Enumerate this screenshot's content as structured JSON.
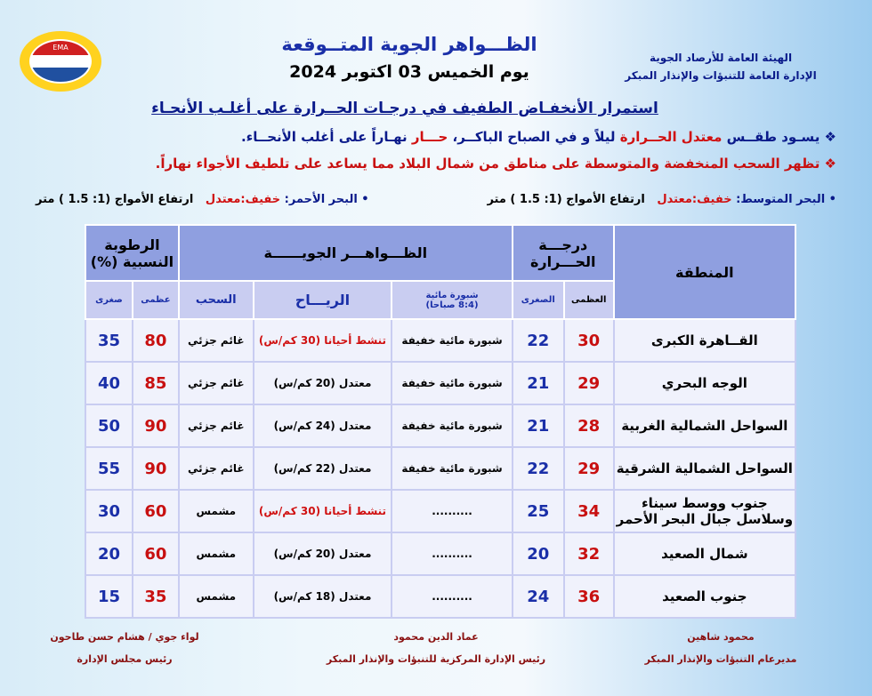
{
  "org": {
    "line1": "الهيئة العامة للأرصاد الجوية",
    "line2": "الإدارة العامة للتنبؤات والإنذار المبكر",
    "logo_text": "EMA"
  },
  "title": "الظـــواهر الجوية المتــوقعة",
  "date": "يوم الخميس 03 اكتوبر 2024",
  "headline": "استمرار الأنخفـاض الطفيف في درجـات الحــرارة على أغلـب الأنحـاء",
  "bullets": [
    {
      "p1": "❖ يسـود طقــس ",
      "p2": "معتدل الحــرارة",
      "p3": " ليلاً و في الصباح الباكــر، ",
      "p4": "حـــار",
      "p5": " نهـاراً على أغلب الأنحــاء."
    },
    {
      "p1": "❖ تظهر السحب المنخفضة والمتوسطة على مناطق من شمال البلاد مما يساعد على ",
      "p2": "تلطيف الأجواء",
      "p3": " نهاراً."
    }
  ],
  "seas": [
    {
      "label": "• البحر المتوسط: ",
      "state": "خفيف:معتدل",
      "waves": "ارتفاع الأمواج (1: 1.5 ) متر"
    },
    {
      "label": "• البحر الأحمر: ",
      "state": "خفيف:معتدل",
      "waves": "ارتفاع الأمواج (1: 1.5 ) متر"
    }
  ],
  "table": {
    "headers": {
      "region": "المنطقة",
      "temp": "درجـــة الحـــرارة",
      "phenomena": "الظـــواهـــر الجويــــــة",
      "humidity": "الرطوبة النسبية (%)",
      "max": "العظمى",
      "min": "الصغرى",
      "fog": "شبورة مائية",
      "fog_time": "(8:4 صباحا)",
      "wind": "الريـــاح",
      "clouds": "السحب",
      "hmax": "عظمى",
      "hmin": "صغرى"
    },
    "rows": [
      {
        "region": "القــاهرة الكبرى",
        "max": "30",
        "min": "22",
        "fog": "شبورة مائية خفيفة",
        "wind": "تنشط أحيانا (30 كم/س)",
        "wind_alert": true,
        "clouds": "غائم جزئي",
        "hmax": "80",
        "hmin": "35"
      },
      {
        "region": "الوجه البحري",
        "max": "29",
        "min": "21",
        "fog": "شبورة مائية خفيفة",
        "wind": "معتدل (20 كم/س)",
        "wind_alert": false,
        "clouds": "غائم جزئي",
        "hmax": "85",
        "hmin": "40"
      },
      {
        "region": "السواحل الشمالية الغربية",
        "max": "28",
        "min": "21",
        "fog": "شبورة مائية خفيفة",
        "wind": "معتدل (24 كم/س)",
        "wind_alert": false,
        "clouds": "غائم جزئي",
        "hmax": "90",
        "hmin": "50"
      },
      {
        "region": "السواحل الشمالية الشرقية",
        "max": "29",
        "min": "22",
        "fog": "شبورة مائية خفيفة",
        "wind": "معتدل (22 كم/س)",
        "wind_alert": false,
        "clouds": "غائم جزئي",
        "hmax": "90",
        "hmin": "55"
      },
      {
        "region": "جنوب ووسط سيناء وسلاسل جبال البحر الأحمر",
        "max": "34",
        "min": "25",
        "fog": "..........",
        "wind": "تنشط أحيانا (30 كم/س)",
        "wind_alert": true,
        "clouds": "مشمس",
        "hmax": "60",
        "hmin": "30"
      },
      {
        "region": "شمال الصعيد",
        "max": "32",
        "min": "20",
        "fog": "..........",
        "wind": "معتدل (20 كم/س)",
        "wind_alert": false,
        "clouds": "مشمس",
        "hmax": "60",
        "hmin": "20"
      },
      {
        "region": "جنوب الصعيد",
        "max": "36",
        "min": "24",
        "fog": "..........",
        "wind": "معتدل (18 كم/س)",
        "wind_alert": false,
        "clouds": "مشمس",
        "hmax": "35",
        "hmin": "15"
      }
    ]
  },
  "signatures": [
    {
      "name": "محمود شاهين",
      "role": "مديرعام التنبؤات والإنذار المبكر"
    },
    {
      "name": "عماد الدين محمود",
      "role": "رئيس الإدارة المركزية للتنبؤات والإنذار المبكر"
    },
    {
      "name": "لواء جوي / هشام حسن طاحون",
      "role": "رئيس مجلس الإدارة"
    }
  ],
  "colors": {
    "title": "#1a2fa8",
    "alert": "#d01010",
    "header": "#8f9fe0",
    "subheader": "#c9cdf1"
  }
}
